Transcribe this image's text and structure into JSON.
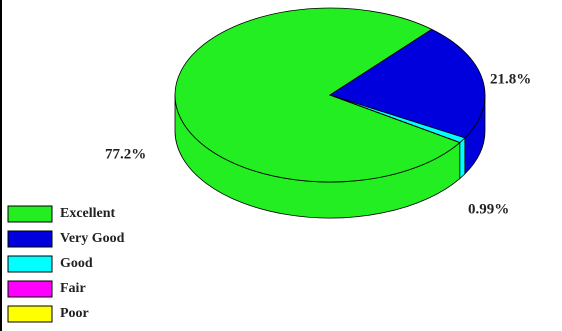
{
  "chart_data": {
    "type": "pie3d",
    "categories": [
      "Excellent",
      "Very Good",
      "Good",
      "Fair",
      "Poor"
    ],
    "values": [
      77.2,
      21.8,
      0.99,
      0,
      0
    ],
    "value_labels": [
      "77.2%",
      "21.8%",
      "0.99%",
      null,
      null
    ],
    "colors": [
      "#22ee22",
      "#0000dd",
      "#00ffff",
      "#ff00ff",
      "#ffff00"
    ]
  }
}
